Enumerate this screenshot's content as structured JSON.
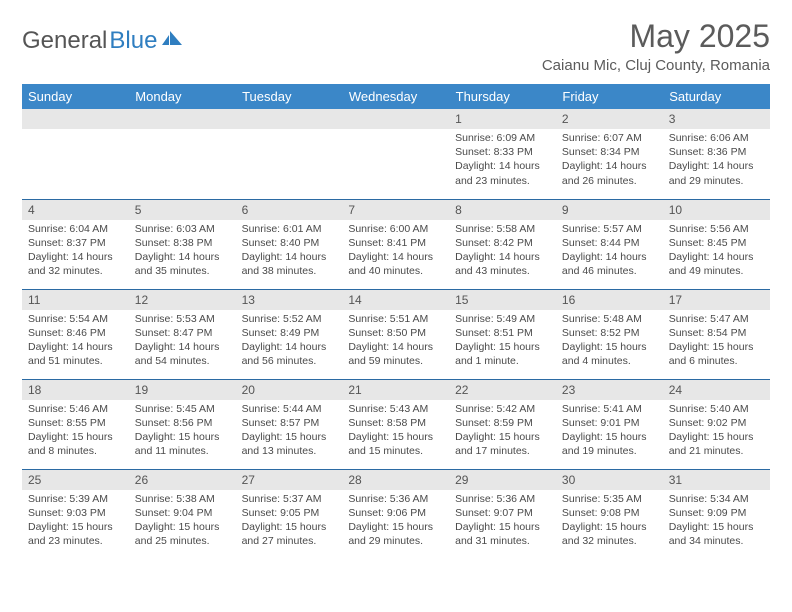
{
  "brand": {
    "part1": "General",
    "part2": "Blue"
  },
  "title": "May 2025",
  "location": "Caianu Mic, Cluj County, Romania",
  "colors": {
    "header_bg": "#3b87c8",
    "header_text": "#ffffff",
    "daynum_bg": "#e7e7e7",
    "border": "#2b6aa3",
    "text": "#4a4a4a",
    "brand_blue": "#2f7ec0"
  },
  "dayNames": [
    "Sunday",
    "Monday",
    "Tuesday",
    "Wednesday",
    "Thursday",
    "Friday",
    "Saturday"
  ],
  "weeks": [
    [
      {
        "n": "",
        "sr": "",
        "ss": "",
        "dl": ""
      },
      {
        "n": "",
        "sr": "",
        "ss": "",
        "dl": ""
      },
      {
        "n": "",
        "sr": "",
        "ss": "",
        "dl": ""
      },
      {
        "n": "",
        "sr": "",
        "ss": "",
        "dl": ""
      },
      {
        "n": "1",
        "sr": "Sunrise: 6:09 AM",
        "ss": "Sunset: 8:33 PM",
        "dl": "Daylight: 14 hours and 23 minutes."
      },
      {
        "n": "2",
        "sr": "Sunrise: 6:07 AM",
        "ss": "Sunset: 8:34 PM",
        "dl": "Daylight: 14 hours and 26 minutes."
      },
      {
        "n": "3",
        "sr": "Sunrise: 6:06 AM",
        "ss": "Sunset: 8:36 PM",
        "dl": "Daylight: 14 hours and 29 minutes."
      }
    ],
    [
      {
        "n": "4",
        "sr": "Sunrise: 6:04 AM",
        "ss": "Sunset: 8:37 PM",
        "dl": "Daylight: 14 hours and 32 minutes."
      },
      {
        "n": "5",
        "sr": "Sunrise: 6:03 AM",
        "ss": "Sunset: 8:38 PM",
        "dl": "Daylight: 14 hours and 35 minutes."
      },
      {
        "n": "6",
        "sr": "Sunrise: 6:01 AM",
        "ss": "Sunset: 8:40 PM",
        "dl": "Daylight: 14 hours and 38 minutes."
      },
      {
        "n": "7",
        "sr": "Sunrise: 6:00 AM",
        "ss": "Sunset: 8:41 PM",
        "dl": "Daylight: 14 hours and 40 minutes."
      },
      {
        "n": "8",
        "sr": "Sunrise: 5:58 AM",
        "ss": "Sunset: 8:42 PM",
        "dl": "Daylight: 14 hours and 43 minutes."
      },
      {
        "n": "9",
        "sr": "Sunrise: 5:57 AM",
        "ss": "Sunset: 8:44 PM",
        "dl": "Daylight: 14 hours and 46 minutes."
      },
      {
        "n": "10",
        "sr": "Sunrise: 5:56 AM",
        "ss": "Sunset: 8:45 PM",
        "dl": "Daylight: 14 hours and 49 minutes."
      }
    ],
    [
      {
        "n": "11",
        "sr": "Sunrise: 5:54 AM",
        "ss": "Sunset: 8:46 PM",
        "dl": "Daylight: 14 hours and 51 minutes."
      },
      {
        "n": "12",
        "sr": "Sunrise: 5:53 AM",
        "ss": "Sunset: 8:47 PM",
        "dl": "Daylight: 14 hours and 54 minutes."
      },
      {
        "n": "13",
        "sr": "Sunrise: 5:52 AM",
        "ss": "Sunset: 8:49 PM",
        "dl": "Daylight: 14 hours and 56 minutes."
      },
      {
        "n": "14",
        "sr": "Sunrise: 5:51 AM",
        "ss": "Sunset: 8:50 PM",
        "dl": "Daylight: 14 hours and 59 minutes."
      },
      {
        "n": "15",
        "sr": "Sunrise: 5:49 AM",
        "ss": "Sunset: 8:51 PM",
        "dl": "Daylight: 15 hours and 1 minute."
      },
      {
        "n": "16",
        "sr": "Sunrise: 5:48 AM",
        "ss": "Sunset: 8:52 PM",
        "dl": "Daylight: 15 hours and 4 minutes."
      },
      {
        "n": "17",
        "sr": "Sunrise: 5:47 AM",
        "ss": "Sunset: 8:54 PM",
        "dl": "Daylight: 15 hours and 6 minutes."
      }
    ],
    [
      {
        "n": "18",
        "sr": "Sunrise: 5:46 AM",
        "ss": "Sunset: 8:55 PM",
        "dl": "Daylight: 15 hours and 8 minutes."
      },
      {
        "n": "19",
        "sr": "Sunrise: 5:45 AM",
        "ss": "Sunset: 8:56 PM",
        "dl": "Daylight: 15 hours and 11 minutes."
      },
      {
        "n": "20",
        "sr": "Sunrise: 5:44 AM",
        "ss": "Sunset: 8:57 PM",
        "dl": "Daylight: 15 hours and 13 minutes."
      },
      {
        "n": "21",
        "sr": "Sunrise: 5:43 AM",
        "ss": "Sunset: 8:58 PM",
        "dl": "Daylight: 15 hours and 15 minutes."
      },
      {
        "n": "22",
        "sr": "Sunrise: 5:42 AM",
        "ss": "Sunset: 8:59 PM",
        "dl": "Daylight: 15 hours and 17 minutes."
      },
      {
        "n": "23",
        "sr": "Sunrise: 5:41 AM",
        "ss": "Sunset: 9:01 PM",
        "dl": "Daylight: 15 hours and 19 minutes."
      },
      {
        "n": "24",
        "sr": "Sunrise: 5:40 AM",
        "ss": "Sunset: 9:02 PM",
        "dl": "Daylight: 15 hours and 21 minutes."
      }
    ],
    [
      {
        "n": "25",
        "sr": "Sunrise: 5:39 AM",
        "ss": "Sunset: 9:03 PM",
        "dl": "Daylight: 15 hours and 23 minutes."
      },
      {
        "n": "26",
        "sr": "Sunrise: 5:38 AM",
        "ss": "Sunset: 9:04 PM",
        "dl": "Daylight: 15 hours and 25 minutes."
      },
      {
        "n": "27",
        "sr": "Sunrise: 5:37 AM",
        "ss": "Sunset: 9:05 PM",
        "dl": "Daylight: 15 hours and 27 minutes."
      },
      {
        "n": "28",
        "sr": "Sunrise: 5:36 AM",
        "ss": "Sunset: 9:06 PM",
        "dl": "Daylight: 15 hours and 29 minutes."
      },
      {
        "n": "29",
        "sr": "Sunrise: 5:36 AM",
        "ss": "Sunset: 9:07 PM",
        "dl": "Daylight: 15 hours and 31 minutes."
      },
      {
        "n": "30",
        "sr": "Sunrise: 5:35 AM",
        "ss": "Sunset: 9:08 PM",
        "dl": "Daylight: 15 hours and 32 minutes."
      },
      {
        "n": "31",
        "sr": "Sunrise: 5:34 AM",
        "ss": "Sunset: 9:09 PM",
        "dl": "Daylight: 15 hours and 34 minutes."
      }
    ]
  ]
}
